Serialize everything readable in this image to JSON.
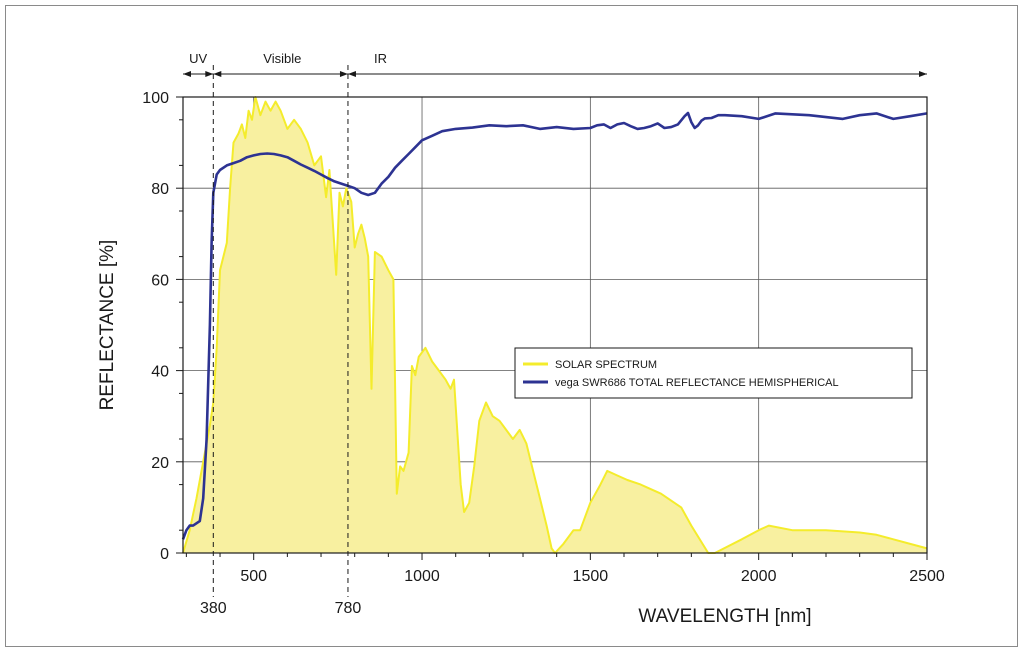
{
  "chart_data": {
    "type": "area",
    "title": "",
    "xlabel": "WAVELENGTH [nm]",
    "ylabel": "REFLECTANCE [%]",
    "xlim": [
      290,
      2500
    ],
    "ylim": [
      0,
      100
    ],
    "grid": true,
    "legend_position": "right-center",
    "x_ticks": [
      500,
      1000,
      1500,
      2000,
      2500
    ],
    "y_ticks": [
      0,
      20,
      40,
      60,
      80,
      100
    ],
    "boundary_ticks": [
      380,
      780
    ],
    "bands": [
      {
        "label": "UV",
        "from": 290,
        "to": 380
      },
      {
        "label": "Visible",
        "from": 380,
        "to": 780
      },
      {
        "label": "IR",
        "from": 780,
        "to": 2500
      }
    ],
    "series": [
      {
        "name": "SOLAR SPECTRUM",
        "style": "filled-area",
        "color": "#f4ec2c",
        "fill": "#f8f0a0",
        "points": [
          [
            290,
            0
          ],
          [
            310,
            5
          ],
          [
            330,
            12
          ],
          [
            350,
            20
          ],
          [
            370,
            28
          ],
          [
            380,
            33
          ],
          [
            390,
            45
          ],
          [
            400,
            62
          ],
          [
            420,
            68
          ],
          [
            430,
            80
          ],
          [
            440,
            90
          ],
          [
            455,
            92
          ],
          [
            465,
            94
          ],
          [
            475,
            91
          ],
          [
            485,
            97
          ],
          [
            495,
            95
          ],
          [
            505,
            100
          ],
          [
            520,
            96
          ],
          [
            535,
            99
          ],
          [
            550,
            97
          ],
          [
            565,
            99
          ],
          [
            580,
            97
          ],
          [
            600,
            93
          ],
          [
            620,
            95
          ],
          [
            640,
            93
          ],
          [
            660,
            90
          ],
          [
            680,
            85
          ],
          [
            700,
            87
          ],
          [
            715,
            78
          ],
          [
            725,
            84
          ],
          [
            745,
            61
          ],
          [
            755,
            79
          ],
          [
            765,
            76
          ],
          [
            775,
            80
          ],
          [
            790,
            77
          ],
          [
            800,
            67
          ],
          [
            810,
            70
          ],
          [
            820,
            72
          ],
          [
            830,
            69
          ],
          [
            840,
            65
          ],
          [
            850,
            36
          ],
          [
            860,
            66
          ],
          [
            880,
            65
          ],
          [
            900,
            62
          ],
          [
            915,
            60
          ],
          [
            925,
            13
          ],
          [
            935,
            19
          ],
          [
            945,
            18
          ],
          [
            960,
            22
          ],
          [
            970,
            41
          ],
          [
            980,
            39
          ],
          [
            990,
            43
          ],
          [
            1010,
            45
          ],
          [
            1030,
            42
          ],
          [
            1050,
            40
          ],
          [
            1070,
            38
          ],
          [
            1085,
            36
          ],
          [
            1095,
            38
          ],
          [
            1115,
            15
          ],
          [
            1125,
            9
          ],
          [
            1140,
            11
          ],
          [
            1155,
            19
          ],
          [
            1170,
            29
          ],
          [
            1190,
            33
          ],
          [
            1210,
            30
          ],
          [
            1230,
            29
          ],
          [
            1250,
            27
          ],
          [
            1270,
            25
          ],
          [
            1290,
            27
          ],
          [
            1310,
            24
          ],
          [
            1330,
            18
          ],
          [
            1350,
            12
          ],
          [
            1370,
            6
          ],
          [
            1385,
            1
          ],
          [
            1395,
            0
          ],
          [
            1420,
            2
          ],
          [
            1450,
            5
          ],
          [
            1470,
            5
          ],
          [
            1500,
            11
          ],
          [
            1530,
            15
          ],
          [
            1550,
            18
          ],
          [
            1580,
            17
          ],
          [
            1610,
            16
          ],
          [
            1650,
            15
          ],
          [
            1680,
            14
          ],
          [
            1710,
            13
          ],
          [
            1730,
            12
          ],
          [
            1770,
            10
          ],
          [
            1800,
            6
          ],
          [
            1850,
            0
          ],
          [
            1870,
            0
          ],
          [
            1950,
            3
          ],
          [
            2000,
            5
          ],
          [
            2030,
            6
          ],
          [
            2100,
            5
          ],
          [
            2200,
            5
          ],
          [
            2300,
            4.5
          ],
          [
            2350,
            4
          ],
          [
            2400,
            3
          ],
          [
            2450,
            2
          ],
          [
            2500,
            1
          ]
        ]
      },
      {
        "name": "vega SWR686 TOTAL REFLECTANCE HEMISPHERICAL",
        "style": "line",
        "color": "#2d3392",
        "points": [
          [
            290,
            3
          ],
          [
            295,
            4
          ],
          [
            300,
            5
          ],
          [
            310,
            6
          ],
          [
            320,
            6
          ],
          [
            340,
            7
          ],
          [
            350,
            12
          ],
          [
            360,
            25
          ],
          [
            370,
            50
          ],
          [
            375,
            68
          ],
          [
            380,
            79
          ],
          [
            390,
            83
          ],
          [
            400,
            84
          ],
          [
            420,
            85
          ],
          [
            440,
            85.5
          ],
          [
            460,
            86
          ],
          [
            480,
            86.8
          ],
          [
            500,
            87.2
          ],
          [
            520,
            87.5
          ],
          [
            540,
            87.6
          ],
          [
            560,
            87.5
          ],
          [
            580,
            87.2
          ],
          [
            600,
            86.8
          ],
          [
            620,
            86
          ],
          [
            640,
            85.2
          ],
          [
            660,
            84.5
          ],
          [
            680,
            83.8
          ],
          [
            700,
            83
          ],
          [
            720,
            82.2
          ],
          [
            740,
            81.5
          ],
          [
            760,
            81
          ],
          [
            780,
            80.5
          ],
          [
            800,
            80
          ],
          [
            820,
            79
          ],
          [
            840,
            78.5
          ],
          [
            860,
            79
          ],
          [
            880,
            81
          ],
          [
            900,
            82.5
          ],
          [
            920,
            84.5
          ],
          [
            940,
            86
          ],
          [
            960,
            87.5
          ],
          [
            980,
            89
          ],
          [
            1000,
            90.5
          ],
          [
            1030,
            91.5
          ],
          [
            1060,
            92.5
          ],
          [
            1100,
            93
          ],
          [
            1150,
            93.3
          ],
          [
            1200,
            93.8
          ],
          [
            1250,
            93.6
          ],
          [
            1300,
            93.8
          ],
          [
            1350,
            93
          ],
          [
            1400,
            93.4
          ],
          [
            1450,
            93
          ],
          [
            1500,
            93.2
          ],
          [
            1520,
            93.8
          ],
          [
            1540,
            94
          ],
          [
            1560,
            93.2
          ],
          [
            1580,
            94
          ],
          [
            1600,
            94.3
          ],
          [
            1620,
            93.6
          ],
          [
            1640,
            93
          ],
          [
            1660,
            93.2
          ],
          [
            1680,
            93.6
          ],
          [
            1700,
            94.2
          ],
          [
            1720,
            93.2
          ],
          [
            1740,
            93.4
          ],
          [
            1760,
            94
          ],
          [
            1780,
            95.8
          ],
          [
            1790,
            96.5
          ],
          [
            1800,
            94.5
          ],
          [
            1810,
            93.2
          ],
          [
            1820,
            93.8
          ],
          [
            1830,
            94.8
          ],
          [
            1840,
            95.3
          ],
          [
            1860,
            95.4
          ],
          [
            1880,
            96
          ],
          [
            1900,
            96
          ],
          [
            1950,
            95.8
          ],
          [
            2000,
            95.2
          ],
          [
            2050,
            96.4
          ],
          [
            2100,
            96.2
          ],
          [
            2150,
            96
          ],
          [
            2200,
            95.6
          ],
          [
            2250,
            95.2
          ],
          [
            2300,
            96
          ],
          [
            2350,
            96.4
          ],
          [
            2400,
            95.2
          ],
          [
            2450,
            95.8
          ],
          [
            2500,
            96.4
          ]
        ]
      }
    ]
  }
}
